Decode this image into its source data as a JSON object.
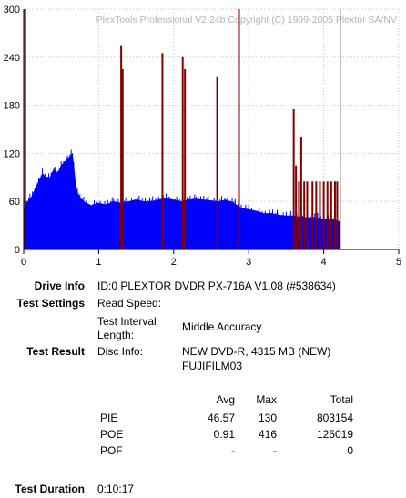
{
  "chart_data": {
    "type": "bar",
    "title": "PlexTools Professional V2.24b Copyright (C) 1999-2005 Plextor SA/NV",
    "xlim": [
      0,
      5
    ],
    "ylim": [
      0,
      300
    ],
    "xticks": [
      "0",
      "1",
      "2",
      "3",
      "4",
      "5"
    ],
    "yticks": [
      "0",
      "60",
      "120",
      "180",
      "240",
      "300"
    ],
    "grid": true,
    "series": [
      {
        "color": "#0000ff",
        "x": [
          0.0,
          0.05,
          0.1,
          0.15,
          0.2,
          0.25,
          0.3,
          0.35,
          0.4,
          0.45,
          0.5,
          0.55,
          0.6,
          0.65,
          0.7,
          0.75,
          0.8,
          0.9,
          1.0,
          1.1,
          1.2,
          1.3,
          1.4,
          1.5,
          1.6,
          1.7,
          1.8,
          1.9,
          2.0,
          2.1,
          2.2,
          2.3,
          2.4,
          2.5,
          2.6,
          2.7,
          2.8,
          2.9,
          3.0,
          3.1,
          3.2,
          3.3,
          3.4,
          3.5,
          3.6,
          3.7,
          3.8,
          3.9,
          4.0,
          4.1,
          4.2,
          4.22
        ],
        "y": [
          50,
          60,
          65,
          75,
          85,
          95,
          90,
          90,
          100,
          95,
          105,
          110,
          115,
          120,
          75,
          65,
          60,
          55,
          58,
          56,
          60,
          58,
          60,
          62,
          60,
          60,
          62,
          64,
          62,
          60,
          62,
          63,
          62,
          61,
          60,
          62,
          58,
          52,
          50,
          48,
          45,
          45,
          43,
          42,
          42,
          40,
          40,
          40,
          38,
          38,
          35,
          35
        ]
      },
      {
        "color": "#800000",
        "x": [
          0.02,
          1.3,
          1.32,
          1.85,
          2.12,
          2.15,
          2.58,
          2.87,
          3.6,
          3.63,
          3.67,
          3.7,
          3.74,
          3.78,
          3.85,
          3.9,
          3.95,
          4.0,
          4.05,
          4.1,
          4.15,
          4.18
        ],
        "y": [
          300,
          255,
          225,
          245,
          240,
          225,
          215,
          300,
          175,
          105,
          85,
          140,
          85,
          85,
          85,
          85,
          85,
          85,
          85,
          85,
          85,
          85
        ]
      }
    ],
    "markers": [
      {
        "x": 2.87,
        "color": "#800000"
      },
      {
        "x": 4.22,
        "color": "#000000"
      }
    ]
  },
  "info": {
    "drive_info_label": "Drive Info",
    "drive_info_value": "ID:0 PLEXTOR DVDR PX-716A V1.08 (#538634)",
    "test_settings_label": "Test Settings",
    "read_speed_label": "Read Speed:",
    "interval_label_1": "Test Interval",
    "interval_label_2": "Length:",
    "interval_value": "Middle Accuracy",
    "test_result_label": "Test Result",
    "disc_info_label": "Disc Info:",
    "disc_info_value_1": "NEW DVD-R, 4315 MB (NEW)",
    "disc_info_value_2": "FUJIFILM03",
    "col_avg": "Avg",
    "col_max": "Max",
    "col_total": "Total",
    "rows": [
      {
        "name": "PIE",
        "avg": "46.57",
        "max": "130",
        "total": "803154"
      },
      {
        "name": "POE",
        "avg": "0.91",
        "max": "416",
        "total": "125019"
      },
      {
        "name": "POF",
        "avg": "-",
        "max": "-",
        "total": "0"
      }
    ],
    "duration_label": "Test Duration",
    "duration_value": "0:10:17"
  }
}
